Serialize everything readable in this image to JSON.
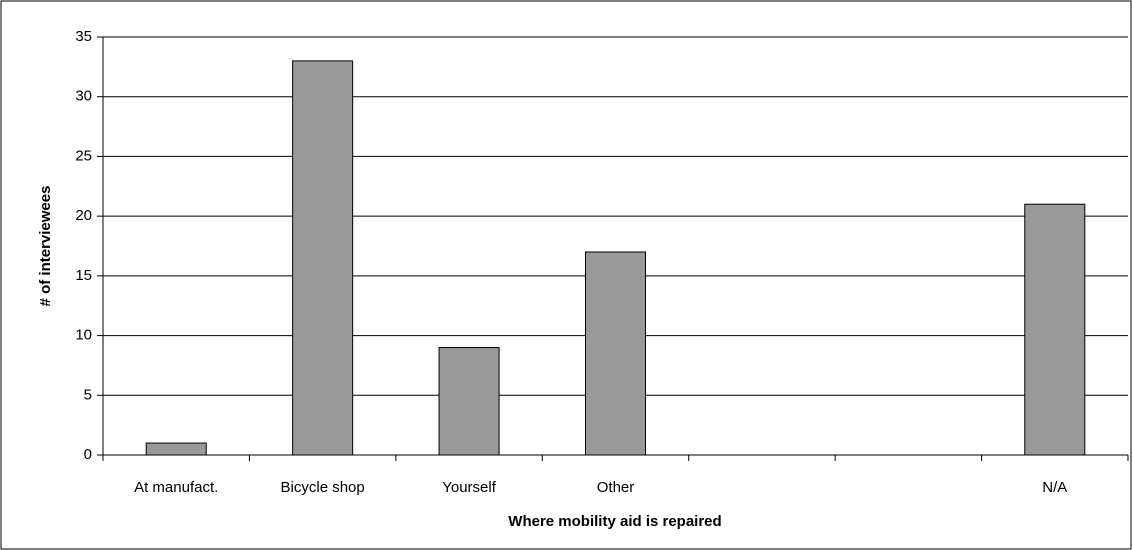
{
  "chart_data": {
    "type": "bar",
    "xlabel": "Where mobility aid is repaired",
    "ylabel": "# of interviewees",
    "categories": [
      "At manufact.",
      "Bicycle shop",
      "Yourself",
      "Other",
      null,
      null,
      "N/A"
    ],
    "values": [
      1,
      33,
      9,
      17,
      null,
      null,
      21
    ],
    "color": "#999999",
    "ylim": [
      0,
      35
    ],
    "yticks": [
      0,
      5,
      10,
      15,
      20,
      25,
      30,
      35
    ],
    "grid": true
  }
}
